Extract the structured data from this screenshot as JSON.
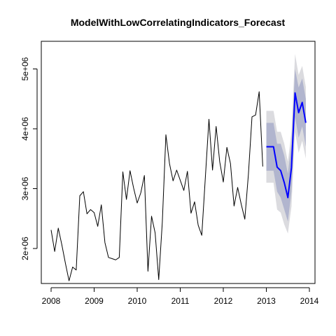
{
  "chart_data": {
    "type": "line",
    "title": "ModelWithLowCorrelatingIndicators_Forecast",
    "xlabel": "",
    "ylabel": "",
    "xlim": [
      2008,
      2014
    ],
    "ylim": [
      1400000,
      5300000
    ],
    "x_ticks": [
      2008,
      2009,
      2010,
      2011,
      2012,
      2013,
      2014
    ],
    "x_tick_labels": [
      "2008",
      "2009",
      "2010",
      "2011",
      "2012",
      "2013",
      "2014"
    ],
    "y_ticks": [
      2000000,
      3000000,
      4000000,
      5000000
    ],
    "y_tick_labels": [
      "2e+06",
      "3e+06",
      "4e+06",
      "5e+06"
    ],
    "grid": false,
    "legend": "none",
    "series": [
      {
        "role": "observed",
        "color": "#000000",
        "x_start": 2008,
        "frequency": 12,
        "values": [
          2310000,
          1950000,
          2340000,
          2060000,
          1750000,
          1460000,
          1690000,
          1640000,
          2880000,
          2950000,
          2580000,
          2650000,
          2600000,
          2370000,
          2730000,
          2100000,
          1850000,
          1830000,
          1810000,
          1850000,
          3280000,
          2820000,
          3300000,
          3010000,
          2760000,
          2930000,
          3220000,
          1620000,
          2540000,
          2260000,
          1480000,
          2440000,
          3900000,
          3420000,
          3130000,
          3310000,
          3140000,
          2970000,
          3290000,
          2590000,
          2780000,
          2390000,
          2220000,
          3190000,
          4160000,
          3310000,
          4040000,
          3450000,
          3110000,
          3690000,
          3420000,
          2710000,
          3020000,
          2740000,
          2490000,
          3240000,
          4200000,
          4230000,
          4620000,
          3370000
        ]
      },
      {
        "role": "forecast",
        "color": "#0000ff",
        "x_start": 2013,
        "frequency": 12,
        "values": [
          3700000,
          3700000,
          3700000,
          3360000,
          3300000,
          3100000,
          2850000,
          3350000,
          4600000,
          4270000,
          4440000,
          4100000
        ],
        "interval_80": {
          "color": "#b1b5ce",
          "lower": [
            3300000,
            3300000,
            3300000,
            2950000,
            2850000,
            2650000,
            2450000,
            2950000,
            4200000,
            3850000,
            4040000,
            3700000
          ],
          "upper": [
            4100000,
            4100000,
            4100000,
            3750000,
            3750000,
            3550000,
            3250000,
            3750000,
            5000000,
            4690000,
            4840000,
            4500000
          ]
        },
        "interval_95": {
          "color": "#dbdbdf",
          "lower": [
            3100000,
            3100000,
            3100000,
            2650000,
            2600000,
            2400000,
            2250000,
            2700000,
            3950000,
            3600000,
            3800000,
            3500000
          ],
          "upper": [
            4300000,
            4300000,
            4300000,
            3950000,
            3950000,
            3750000,
            3450000,
            3950000,
            5250000,
            4900000,
            5050000,
            4700000
          ]
        }
      }
    ]
  }
}
